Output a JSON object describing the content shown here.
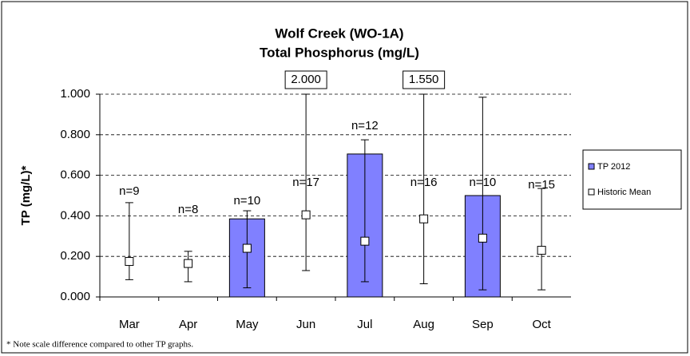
{
  "chart_data": {
    "type": "bar",
    "title": "Wolf Creek (WO-1A)",
    "subtitle": "Total Phosphorus (mg/L)",
    "y_label": "TP (mg/L)*",
    "footnote": "* Note scale difference compared to other TP graphs.",
    "categories": [
      "Mar",
      "Apr",
      "May",
      "Jun",
      "Jul",
      "Aug",
      "Sep",
      "Oct"
    ],
    "series": [
      {
        "name": "TP 2012",
        "color": "#8080ff",
        "values": [
          null,
          null,
          0.385,
          null,
          0.705,
          null,
          0.5,
          null
        ]
      },
      {
        "name": "Historic Mean",
        "color": "#ffffff",
        "values": [
          0.175,
          0.165,
          0.24,
          0.405,
          0.275,
          0.385,
          0.29,
          0.23
        ],
        "low": [
          0.085,
          0.075,
          0.045,
          0.13,
          0.075,
          0.065,
          0.035,
          0.035
        ],
        "high": [
          0.465,
          0.225,
          0.425,
          2.0,
          0.775,
          1.55,
          0.985,
          0.535
        ],
        "high_labels": [
          null,
          null,
          null,
          "2.000",
          null,
          "1.550",
          null,
          null
        ]
      }
    ],
    "n_labels": [
      "n=9",
      "n=8",
      "n=10",
      "n=17",
      "n=12",
      "n=16",
      "n=10",
      "n=15"
    ],
    "ylim": [
      0,
      1
    ],
    "yticks": [
      {
        "value": 0,
        "label": "0.000"
      },
      {
        "value": 0.2,
        "label": "0.200"
      },
      {
        "value": 0.4,
        "label": "0.400"
      },
      {
        "value": 0.6,
        "label": "0.600"
      },
      {
        "value": 0.8,
        "label": "0.800"
      },
      {
        "value": 1,
        "label": "1.000"
      }
    ],
    "grid": true
  }
}
